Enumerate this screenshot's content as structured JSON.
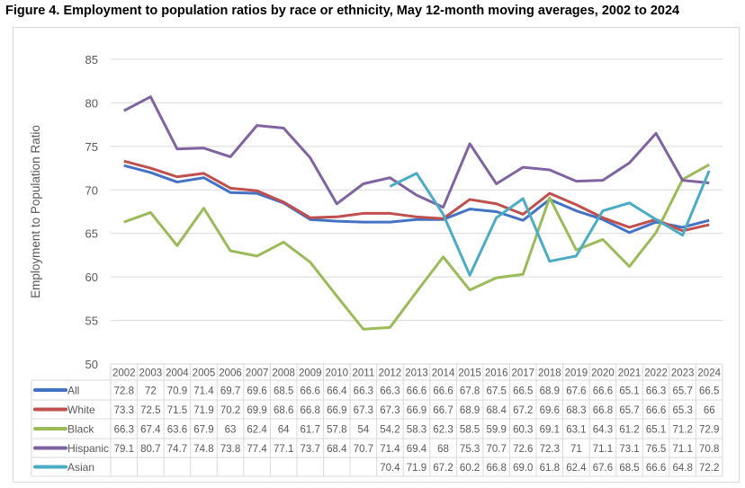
{
  "title": "Figure 4. Employment to population ratios by race or ethnicity, May 12-month moving averages, 2002 to 2024",
  "chart_data": {
    "type": "line",
    "title": "Figure 4. Employment to population ratios by race or ethnicity, May 12-month moving averages, 2002 to 2024",
    "xlabel": "",
    "ylabel": "Employment to Population Ratio",
    "ylim": [
      50,
      85
    ],
    "yticks": [
      50,
      55,
      60,
      65,
      70,
      75,
      80,
      85
    ],
    "grid": true,
    "legend": "data-table",
    "categories": [
      "2002",
      "2003",
      "2004",
      "2005",
      "2006",
      "2007",
      "2008",
      "2009",
      "2010",
      "2011",
      "2012",
      "2013",
      "2014",
      "2015",
      "2016",
      "2017",
      "2018",
      "2019",
      "2020",
      "2021",
      "2022",
      "2023",
      "2024"
    ],
    "series": [
      {
        "name": "All",
        "color": "#4472C4",
        "values": [
          72.8,
          72,
          70.9,
          71.4,
          69.7,
          69.6,
          68.5,
          66.6,
          66.4,
          66.3,
          66.3,
          66.6,
          66.6,
          67.8,
          67.5,
          66.5,
          68.9,
          67.6,
          66.6,
          65.1,
          66.3,
          65.7,
          66.5
        ]
      },
      {
        "name": "White",
        "color": "#C0504D",
        "values": [
          73.3,
          72.5,
          71.5,
          71.9,
          70.2,
          69.9,
          68.6,
          66.8,
          66.9,
          67.3,
          67.3,
          66.9,
          66.7,
          68.9,
          68.4,
          67.2,
          69.6,
          68.3,
          66.8,
          65.7,
          66.6,
          65.3,
          66
        ]
      },
      {
        "name": "Black",
        "color": "#9BBB59",
        "values": [
          66.3,
          67.4,
          63.6,
          67.9,
          63,
          62.4,
          64,
          61.7,
          57.8,
          54,
          54.2,
          58.3,
          62.3,
          58.5,
          59.9,
          60.3,
          69.1,
          63.1,
          64.3,
          61.2,
          65.1,
          71.2,
          72.9
        ]
      },
      {
        "name": "Hispanic",
        "color": "#8064A2",
        "values": [
          79.1,
          80.7,
          74.7,
          74.8,
          73.8,
          77.4,
          77.1,
          73.7,
          68.4,
          70.7,
          71.4,
          69.4,
          68,
          75.3,
          70.7,
          72.6,
          72.3,
          71,
          71.1,
          73.1,
          76.5,
          71.1,
          70.8
        ]
      },
      {
        "name": "Asian",
        "color": "#4BACC6",
        "values": [
          null,
          null,
          null,
          null,
          null,
          null,
          null,
          null,
          null,
          null,
          70.4,
          71.9,
          67.2,
          60.2,
          66.8,
          69.0,
          61.8,
          62.4,
          67.6,
          68.5,
          66.6,
          64.8,
          72.2
        ],
        "labels": [
          "",
          "",
          "",
          "",
          "",
          "",
          "",
          "",
          "",
          "",
          "70.4",
          "71.9",
          "67.2",
          "60.2",
          "66.8",
          "69.0",
          "61.8",
          "62.4",
          "67.6",
          "68.5",
          "66.6",
          "64.8",
          "72.2"
        ]
      }
    ]
  }
}
